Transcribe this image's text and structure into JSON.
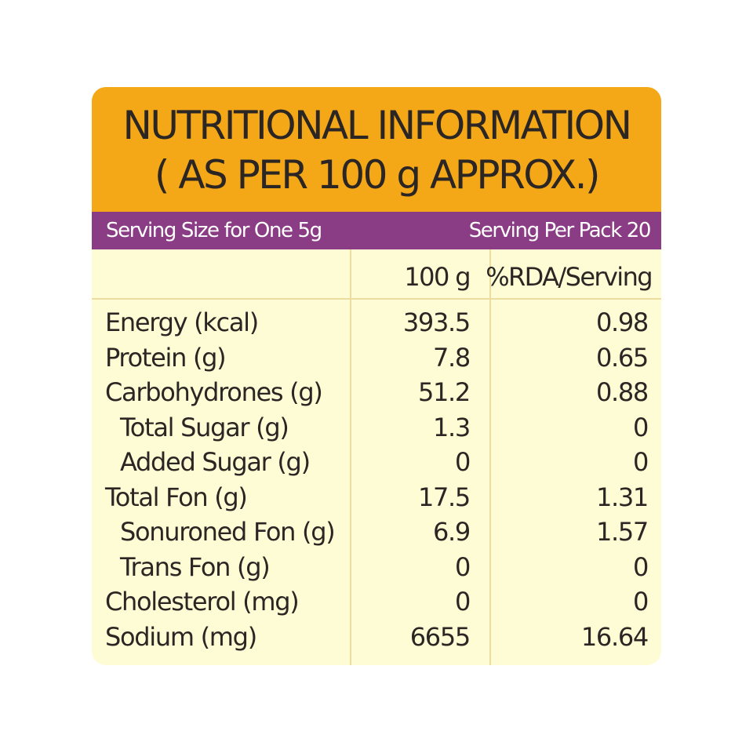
{
  "header": {
    "title_line1": "NUTRITIONAL INFORMATION",
    "title_line2": "( AS PER 100 g APPROX.)"
  },
  "serving": {
    "size": "Serving Size for One 5g",
    "per_pack": "Serving Per Pack 20"
  },
  "columns": {
    "col1": "100 g",
    "col2": "%RDA/Serving"
  },
  "rows": [
    {
      "label": "Energy (kcal)",
      "per100": "393.5",
      "rda": "0.98",
      "indent": false
    },
    {
      "label": "Protein (g)",
      "per100": "7.8",
      "rda": "0.65",
      "indent": false
    },
    {
      "label": "Carbohydrones (g)",
      "per100": "51.2",
      "rda": "0.88",
      "indent": false
    },
    {
      "label": "Total Sugar (g)",
      "per100": "1.3",
      "rda": "0",
      "indent": true
    },
    {
      "label": "Added Sugar (g)",
      "per100": "0",
      "rda": "0",
      "indent": true
    },
    {
      "label": "Total Fon (g)",
      "per100": "17.5",
      "rda": "1.31",
      "indent": false
    },
    {
      "label": "Sonuroned Fon (g)",
      "per100": "6.9",
      "rda": "1.57",
      "indent": true
    },
    {
      "label": "Trans Fon (g)",
      "per100": "0",
      "rda": "0",
      "indent": true
    },
    {
      "label": "Cholesterol (mg)",
      "per100": "0",
      "rda": "0",
      "indent": false
    },
    {
      "label": "Sodium (mg)",
      "per100": "6655",
      "rda": "16.64",
      "indent": false
    }
  ],
  "colors": {
    "header_bg": "#f4a817",
    "serving_bar_bg": "#8a3c85",
    "table_bg": "#fdfcd4",
    "text": "#2b2624"
  }
}
